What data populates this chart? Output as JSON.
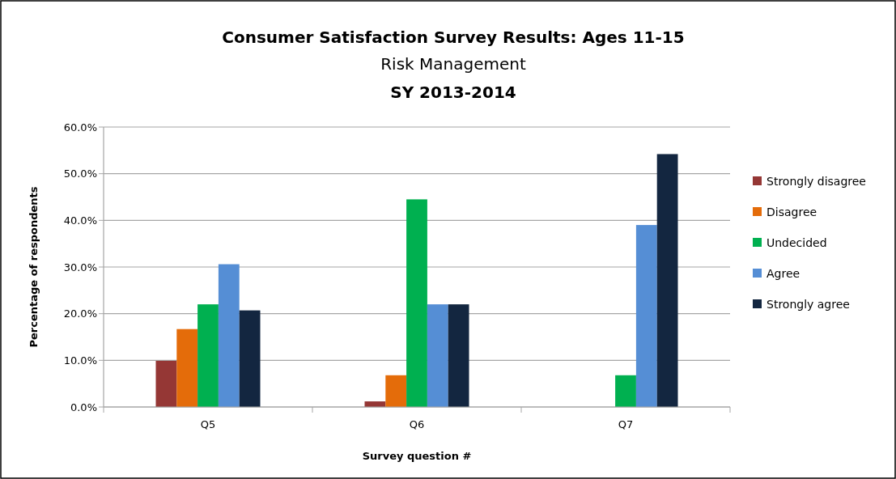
{
  "chart_data": {
    "type": "bar",
    "title": "Consumer Satisfaction Survey Results: Ages 11-15",
    "subtitle": "Risk Management",
    "annotations": [
      "SY 2013-2014"
    ],
    "xlabel": "Survey question #",
    "ylabel": "Percentage of respondents",
    "categories": [
      "Q5",
      "Q6",
      "Q7"
    ],
    "series": [
      {
        "name": "Strongly disagree",
        "color": "#953735",
        "values": [
          9.9,
          1.2,
          0
        ]
      },
      {
        "name": "Disagree",
        "color": "#e46c0a",
        "values": [
          16.7,
          6.8,
          0
        ]
      },
      {
        "name": "Undecided",
        "color": "#00b050",
        "values": [
          22.0,
          44.5,
          6.8
        ]
      },
      {
        "name": "Agree",
        "color": "#558ed5",
        "values": [
          30.6,
          22.0,
          39.0
        ]
      },
      {
        "name": "Strongly agree",
        "color": "#132640",
        "values": [
          20.7,
          22.0,
          54.2
        ]
      }
    ],
    "ylim": [
      0,
      60
    ],
    "yticks": [
      {
        "value": 0,
        "label": "0.0%"
      },
      {
        "value": 10,
        "label": "10.0%"
      },
      {
        "value": 20,
        "label": "20.0%"
      },
      {
        "value": 30,
        "label": "30.0%"
      },
      {
        "value": 40,
        "label": "40.0%"
      },
      {
        "value": 50,
        "label": "50.0%"
      },
      {
        "value": 60,
        "label": "60.0%"
      }
    ],
    "grid": "y",
    "legend": "right"
  }
}
